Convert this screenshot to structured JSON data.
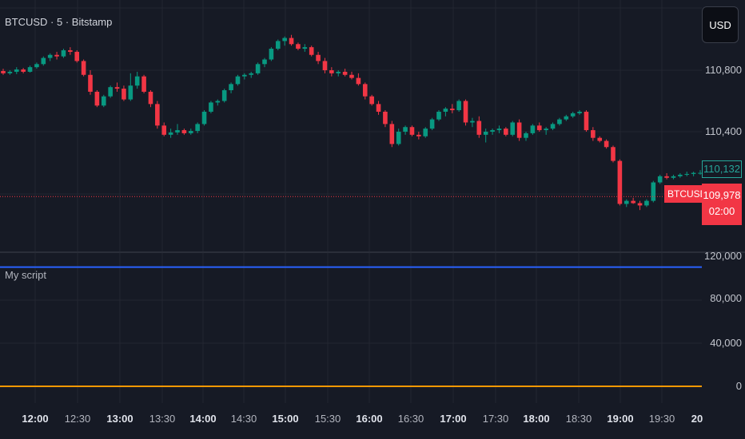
{
  "header": {
    "symbol_title": "BTCUSD · 5 · Bitstamp",
    "currency_label": "USD"
  },
  "indicator_pane": {
    "title": "My script"
  },
  "price_axis": {
    "labels": [
      "110,800",
      "110,400"
    ]
  },
  "indicator_axis": {
    "labels": [
      "120,000",
      "80,000",
      "40,000",
      "0"
    ]
  },
  "time_axis": {
    "labels": [
      {
        "text": "12:00",
        "bold": true
      },
      {
        "text": "12:30",
        "bold": false
      },
      {
        "text": "13:00",
        "bold": true
      },
      {
        "text": "13:30",
        "bold": false
      },
      {
        "text": "14:00",
        "bold": true
      },
      {
        "text": "14:30",
        "bold": false
      },
      {
        "text": "15:00",
        "bold": true
      },
      {
        "text": "15:30",
        "bold": false
      },
      {
        "text": "16:00",
        "bold": true
      },
      {
        "text": "16:30",
        "bold": false
      },
      {
        "text": "17:00",
        "bold": true
      },
      {
        "text": "17:30",
        "bold": false
      },
      {
        "text": "18:00",
        "bold": true
      },
      {
        "text": "18:30",
        "bold": false
      },
      {
        "text": "19:00",
        "bold": true
      },
      {
        "text": "19:30",
        "bold": false
      },
      {
        "text": "20",
        "bold": true
      }
    ]
  },
  "price_tags": {
    "secondary_value": "110,132",
    "symbol": "BTCUSD",
    "last_value": "109,978",
    "countdown": "02:00"
  },
  "colors": {
    "up": "#089981",
    "down": "#f23645",
    "indicator_line_1": "#2962ff",
    "indicator_line_2": "#ff9800",
    "background": "#161a25"
  },
  "chart_data": {
    "type": "candlestick",
    "y_range": [
      109700,
      111050
    ],
    "last_price": 109978,
    "candles": [
      [
        110795,
        110810,
        110770,
        110780
      ],
      [
        110780,
        110800,
        110770,
        110790
      ],
      [
        110790,
        110820,
        110775,
        110805
      ],
      [
        110805,
        110815,
        110780,
        110790
      ],
      [
        110790,
        110830,
        110785,
        110820
      ],
      [
        110820,
        110850,
        110810,
        110840
      ],
      [
        110840,
        110890,
        110830,
        110880
      ],
      [
        110880,
        110910,
        110860,
        110900
      ],
      [
        110900,
        110920,
        110870,
        110890
      ],
      [
        110890,
        110940,
        110880,
        110930
      ],
      [
        110930,
        110950,
        110900,
        110920
      ],
      [
        110920,
        110930,
        110850,
        110860
      ],
      [
        110860,
        110870,
        110760,
        110770
      ],
      [
        110770,
        110800,
        110640,
        110660
      ],
      [
        110660,
        110670,
        110560,
        110570
      ],
      [
        110570,
        110640,
        110560,
        110630
      ],
      [
        110630,
        110700,
        110620,
        110690
      ],
      [
        110690,
        110720,
        110660,
        110680
      ],
      [
        110680,
        110700,
        110600,
        110610
      ],
      [
        110610,
        110780,
        110600,
        110700
      ],
      [
        110700,
        110790,
        110680,
        110760
      ],
      [
        110760,
        110770,
        110650,
        110660
      ],
      [
        110660,
        110670,
        110560,
        110580
      ],
      [
        110580,
        110600,
        110420,
        110440
      ],
      [
        110440,
        110460,
        110370,
        110380
      ],
      [
        110380,
        110420,
        110360,
        110395
      ],
      [
        110395,
        110450,
        110380,
        110410
      ],
      [
        110410,
        110420,
        110380,
        110390
      ],
      [
        110390,
        110420,
        110380,
        110405
      ],
      [
        110405,
        110460,
        110390,
        110450
      ],
      [
        110450,
        110540,
        110440,
        110530
      ],
      [
        110530,
        110600,
        110520,
        110590
      ],
      [
        110590,
        110610,
        110570,
        110600
      ],
      [
        110600,
        110680,
        110590,
        110670
      ],
      [
        110670,
        110720,
        110650,
        110710
      ],
      [
        110710,
        110770,
        110700,
        110760
      ],
      [
        110760,
        110780,
        110740,
        110770
      ],
      [
        110770,
        110790,
        110750,
        110780
      ],
      [
        110780,
        110850,
        110770,
        110840
      ],
      [
        110840,
        110880,
        110820,
        110870
      ],
      [
        110870,
        110950,
        110860,
        110940
      ],
      [
        110940,
        111000,
        110930,
        110990
      ],
      [
        110990,
        111020,
        110960,
        111010
      ],
      [
        111010,
        111030,
        110960,
        110970
      ],
      [
        110970,
        110980,
        110930,
        110940
      ],
      [
        110940,
        110970,
        110920,
        110950
      ],
      [
        110950,
        110960,
        110890,
        110900
      ],
      [
        110900,
        110920,
        110840,
        110860
      ],
      [
        110860,
        110880,
        110780,
        110800
      ],
      [
        110800,
        110820,
        110760,
        110780
      ],
      [
        110780,
        110800,
        110760,
        110790
      ],
      [
        110790,
        110810,
        110760,
        110770
      ],
      [
        110770,
        110790,
        110740,
        110750
      ],
      [
        110750,
        110780,
        110700,
        110710
      ],
      [
        110710,
        110720,
        110610,
        110630
      ],
      [
        110630,
        110640,
        110570,
        110580
      ],
      [
        110580,
        110600,
        110510,
        110530
      ],
      [
        110530,
        110540,
        110430,
        110450
      ],
      [
        110450,
        110470,
        110300,
        110320
      ],
      [
        110320,
        110420,
        110310,
        110400
      ],
      [
        110400,
        110440,
        110380,
        110430
      ],
      [
        110430,
        110440,
        110370,
        110380
      ],
      [
        110380,
        110400,
        110350,
        110370
      ],
      [
        110370,
        110430,
        110360,
        110420
      ],
      [
        110420,
        110490,
        110410,
        110480
      ],
      [
        110480,
        110540,
        110470,
        110530
      ],
      [
        110530,
        110560,
        110500,
        110550
      ],
      [
        110550,
        110580,
        110520,
        110540
      ],
      [
        110540,
        110610,
        110530,
        110600
      ],
      [
        110600,
        110610,
        110440,
        110460
      ],
      [
        110460,
        110490,
        110430,
        110470
      ],
      [
        110470,
        110500,
        110360,
        110380
      ],
      [
        110380,
        110420,
        110330,
        110400
      ],
      [
        110400,
        110420,
        110380,
        110410
      ],
      [
        110410,
        110440,
        110390,
        110420
      ],
      [
        110420,
        110430,
        110370,
        110380
      ],
      [
        110380,
        110470,
        110370,
        110460
      ],
      [
        110460,
        110480,
        110340,
        110360
      ],
      [
        110360,
        110400,
        110340,
        110390
      ],
      [
        110390,
        110450,
        110380,
        110440
      ],
      [
        110440,
        110460,
        110400,
        110410
      ],
      [
        110410,
        110430,
        110380,
        110420
      ],
      [
        110420,
        110460,
        110410,
        110450
      ],
      [
        110450,
        110490,
        110440,
        110480
      ],
      [
        110480,
        110510,
        110470,
        110500
      ],
      [
        110500,
        110530,
        110490,
        110520
      ],
      [
        110520,
        110540,
        110510,
        110530
      ],
      [
        110530,
        110540,
        110400,
        110410
      ],
      [
        110410,
        110430,
        110340,
        110360
      ],
      [
        110360,
        110370,
        110330,
        110340
      ],
      [
        110340,
        110350,
        110290,
        110300
      ],
      [
        110300,
        110310,
        110200,
        110210
      ],
      [
        110210,
        110220,
        109920,
        109930
      ],
      [
        109930,
        109960,
        109910,
        109950
      ],
      [
        109950,
        109970,
        109930,
        109935
      ],
      [
        109935,
        109950,
        109890,
        109920
      ],
      [
        109920,
        109960,
        109910,
        109950
      ],
      [
        109950,
        110080,
        109940,
        110070
      ],
      [
        110070,
        110120,
        110060,
        110110
      ],
      [
        110110,
        110130,
        110090,
        110100
      ],
      [
        110100,
        110120,
        110090,
        110110
      ],
      [
        110110,
        110130,
        110100,
        110120
      ],
      [
        110120,
        110140,
        110110,
        110125
      ],
      [
        110125,
        110140,
        110110,
        110132
      ],
      [
        110132,
        110150,
        110120,
        110132
      ]
    ],
    "indicator_series": [
      {
        "value": 110000,
        "color": "#2962ff"
      },
      {
        "value": 0,
        "color": "#ff9800"
      }
    ],
    "indicator_y_range": [
      -8000,
      132000
    ]
  }
}
